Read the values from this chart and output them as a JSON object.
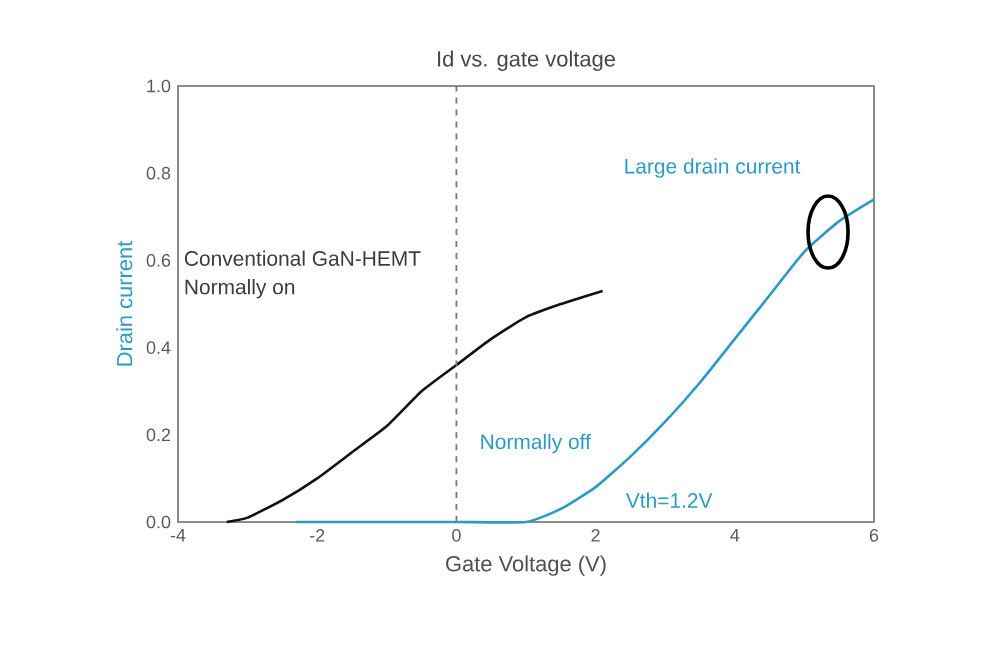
{
  "chart_data": {
    "type": "line",
    "title": "Id vs. gate voltage",
    "xlabel": "Gate Voltage (V)",
    "ylabel": "Drain current",
    "xlim": [
      -4,
      6
    ],
    "xticks": [
      -4,
      -2,
      0,
      2,
      4,
      6
    ],
    "ylim": [
      0,
      1.0
    ],
    "yticks": [
      {
        "value": 0,
        "label": "0.0"
      },
      {
        "value": 0.2,
        "label": "0.2"
      },
      {
        "value": 0.4,
        "label": "0.4"
      },
      {
        "value": 0.6,
        "label": "0.6"
      },
      {
        "value": 0.8,
        "label": "0.8"
      },
      {
        "value": 1.0,
        "label": "1.0"
      }
    ],
    "marker": "none",
    "line_style": "solid",
    "series": [
      {
        "color": "#111111",
        "x": [
          -3.3,
          -3,
          -2.5,
          -2,
          -1.5,
          -1,
          -0.5,
          0,
          0.5,
          1,
          1.5,
          2.1
        ],
        "values": [
          0,
          0.01,
          0.05,
          0.1,
          0.16,
          0.22,
          0.3,
          0.36,
          0.42,
          0.47,
          0.5,
          0.53
        ]
      },
      {
        "color": "#2a9bc6",
        "x": [
          -2.3,
          -1,
          0,
          1,
          1.5,
          2,
          2.5,
          3,
          3.5,
          4,
          4.5,
          5,
          5.5,
          6
        ],
        "values": [
          0,
          0,
          0,
          0,
          0.03,
          0.08,
          0.15,
          0.23,
          0.32,
          0.42,
          0.52,
          0.62,
          0.69,
          0.74
        ]
      }
    ],
    "ref_lines": [
      {
        "axis": "x",
        "value": 0,
        "color": "#777777",
        "line_style": "dashed"
      }
    ],
    "annotations": [
      "Conventional GaN-HEMT",
      "Normally on",
      "Normally off",
      "Vth=1.2V",
      {
        "text": "Large drain current",
        "x": 5.34,
        "y": 0.665
      }
    ]
  }
}
